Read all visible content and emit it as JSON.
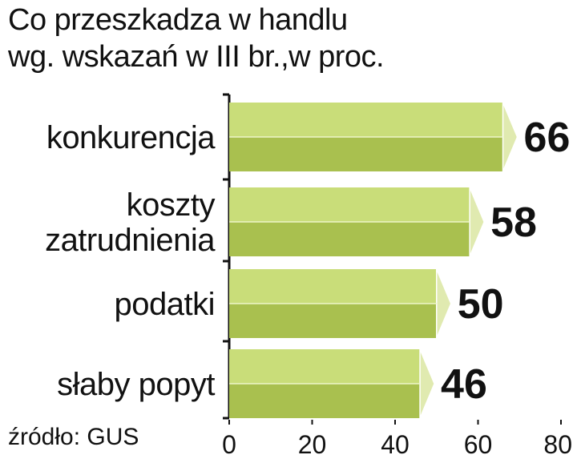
{
  "title_lines": [
    "Co przeszkadza w handlu",
    "wg. wskazań w III br.,w proc."
  ],
  "source": "źródło: GUS",
  "colors": {
    "bar_top": "#c9dd79",
    "bar_bottom": "#a9c04f",
    "bar_cap": "#e0eab0",
    "axis": "#111111"
  },
  "chart_data": {
    "type": "bar",
    "orientation": "horizontal",
    "title": "Co przeszkadza w handlu wg. wskazań w III br.,w proc.",
    "categories": [
      [
        "konkurencja"
      ],
      [
        "koszty",
        "zatrudnienia"
      ],
      [
        "podatki"
      ],
      [
        "słaby popyt"
      ]
    ],
    "values": [
      66,
      58,
      50,
      46
    ],
    "value_labels": [
      "66",
      "58",
      "50",
      "46"
    ],
    "xlim": [
      0,
      80
    ],
    "xticks": [
      0,
      20,
      40,
      60,
      80
    ],
    "xtick_labels": [
      "0",
      "20",
      "40",
      "60",
      "80"
    ],
    "grid": false,
    "legend": "none"
  }
}
